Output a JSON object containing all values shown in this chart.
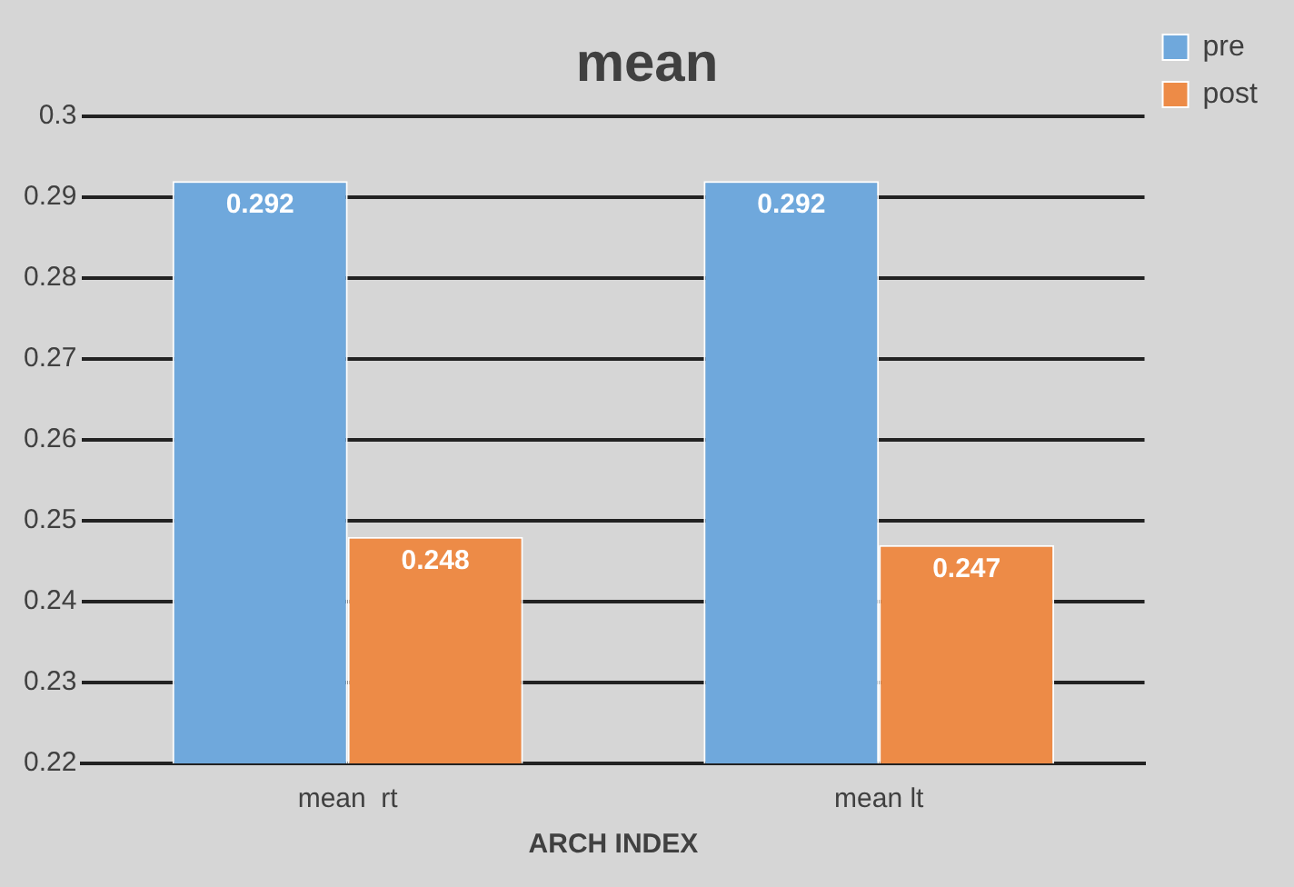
{
  "chart_data": {
    "type": "bar",
    "title": "mean",
    "xlabel": "ARCH INDEX",
    "categories": [
      "mean  rt",
      "mean lt"
    ],
    "series": [
      {
        "name": "pre",
        "color": "#6fa8dc",
        "values": [
          0.292,
          0.292
        ]
      },
      {
        "name": "post",
        "color": "#ed8b47",
        "values": [
          0.248,
          0.247
        ]
      }
    ],
    "ylim": [
      0.22,
      0.3
    ],
    "yticks": [
      0.22,
      0.23,
      0.24,
      0.25,
      0.26,
      0.27,
      0.28,
      0.29,
      0.3
    ],
    "grid": "y",
    "legend": "top right",
    "data_labels": true
  }
}
